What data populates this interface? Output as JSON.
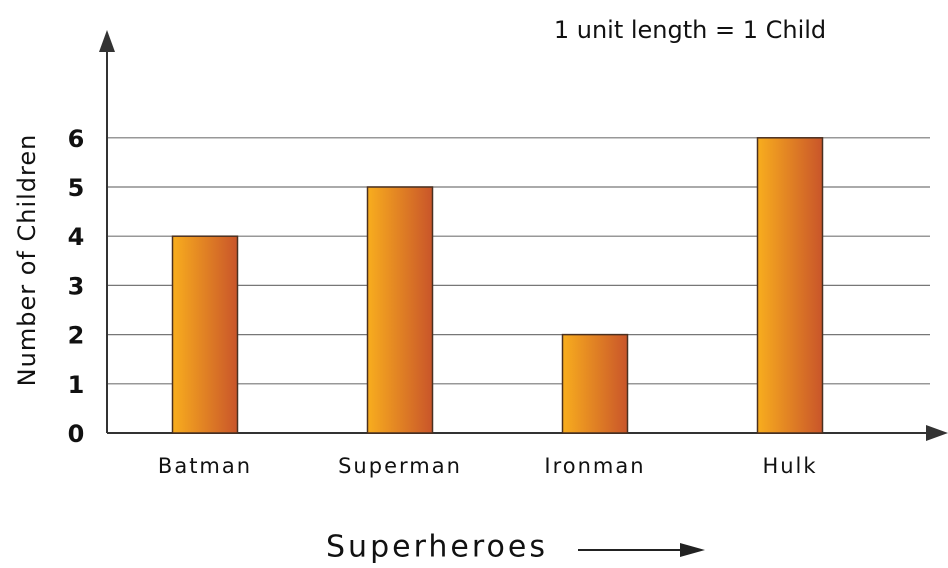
{
  "chart_data": {
    "type": "bar",
    "annotation": "1 unit length = 1 Child",
    "x_label": "Superheroes",
    "y_label": "Number of Children",
    "categories": [
      "Batman",
      "Superman",
      "Ironman",
      "Hulk"
    ],
    "values": [
      4,
      5,
      2,
      6
    ],
    "gradient": [
      "#f8ad1e",
      "#c9552a"
    ],
    "ylim": [
      0,
      8
    ],
    "yticks": [
      0,
      1,
      2,
      3,
      4,
      5,
      6
    ],
    "grid": true
  }
}
